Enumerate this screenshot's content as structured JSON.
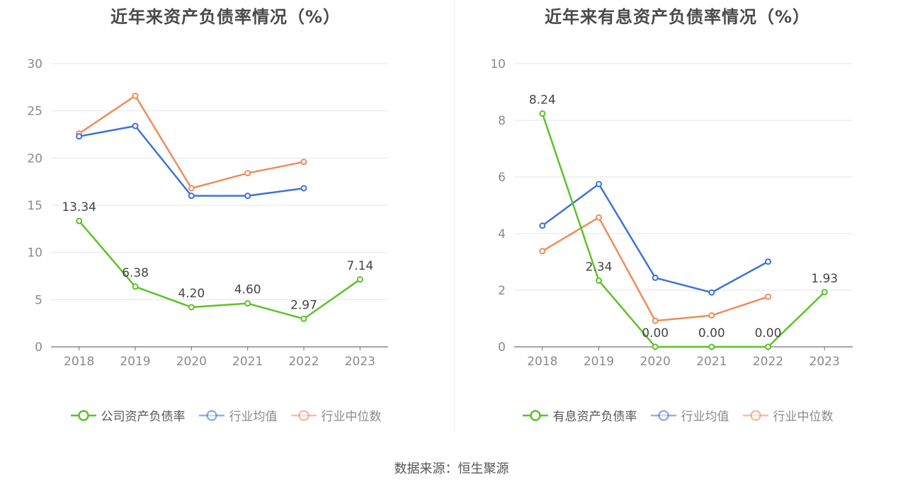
{
  "footer": "数据来源：恒生聚源",
  "chart_data": [
    {
      "type": "line",
      "title": "近年来资产负债率情况（%）",
      "categories": [
        "2018",
        "2019",
        "2020",
        "2021",
        "2022",
        "2023"
      ],
      "ylim": [
        0,
        30
      ],
      "yticks": [
        0,
        5,
        10,
        15,
        20,
        25,
        30
      ],
      "grid": true,
      "legend_position": "bottom",
      "series": [
        {
          "name": "公司资产负债率",
          "color": "#5cc327",
          "values": [
            13.34,
            6.38,
            4.2,
            4.6,
            2.97,
            7.14
          ],
          "labels": [
            "13.34",
            "6.38",
            "4.20",
            "4.60",
            "2.97",
            "7.14"
          ]
        },
        {
          "name": "行业均值",
          "color": "#3d73d9",
          "values": [
            22.3,
            23.4,
            16.0,
            16.0,
            16.8,
            null
          ]
        },
        {
          "name": "行业中位数",
          "color": "#f08c5a",
          "values": [
            22.6,
            26.6,
            16.8,
            18.4,
            19.6,
            null
          ]
        }
      ]
    },
    {
      "type": "line",
      "title": "近年来有息资产负债率情况（%）",
      "categories": [
        "2018",
        "2019",
        "2020",
        "2021",
        "2022",
        "2023"
      ],
      "ylim": [
        0,
        10
      ],
      "yticks": [
        0,
        2,
        4,
        6,
        8,
        10
      ],
      "grid": true,
      "legend_position": "bottom",
      "series": [
        {
          "name": "有息资产负债率",
          "color": "#5cc327",
          "values": [
            8.24,
            2.34,
            0.0,
            0.0,
            0.0,
            1.93
          ],
          "labels": [
            "8.24",
            "2.34",
            "0.00",
            "0.00",
            "0.00",
            "1.93"
          ]
        },
        {
          "name": "行业均值",
          "color": "#3d73d9",
          "values": [
            4.28,
            5.75,
            2.44,
            1.92,
            3.01,
            null
          ]
        },
        {
          "name": "行业中位数",
          "color": "#f08c5a",
          "values": [
            3.38,
            4.57,
            0.92,
            1.11,
            1.77,
            null
          ]
        }
      ]
    }
  ]
}
